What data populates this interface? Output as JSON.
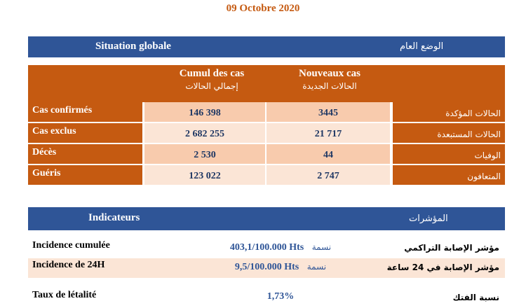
{
  "date": "09 Octobre 2020",
  "global": {
    "title_fr": "Situation globale",
    "title_ar": "الوضع العام",
    "col1_fr": "Cumul des cas",
    "col1_ar": "إجمالي الحالات",
    "col2_fr": "Nouveaux cas",
    "col2_ar": "الحالات الجديدة",
    "rows": [
      {
        "label_fr": "Cas confirmés",
        "cumul": "146 398",
        "nouveaux": "3445",
        "label_ar": "الحالات المؤكدة"
      },
      {
        "label_fr": "Cas exclus",
        "cumul": "2 682 255",
        "nouveaux": "21 717",
        "label_ar": "الحالات المستبعدة"
      },
      {
        "label_fr": "Décès",
        "cumul": "2 530",
        "nouveaux": "44",
        "label_ar": "الوفيات"
      },
      {
        "label_fr": "Guéris",
        "cumul": "123 022",
        "nouveaux": "2 747",
        "label_ar": "المتعافون"
      }
    ]
  },
  "indicators": {
    "title_fr": "Indicateurs",
    "title_ar": "المؤشرات",
    "rows": [
      {
        "label_fr": "Incidence cumulée",
        "value": "403,1/100.000 Hts",
        "value_ar": "نسمة",
        "label_ar": "مؤشر الإصابة التراكمي"
      },
      {
        "label_fr": "Incidence de 24H",
        "value": "9,5/100.000 Hts",
        "value_ar": "نسمة",
        "label_ar": "مؤشر الإصابة في 24 ساعة"
      },
      {
        "label_fr": "Taux de létalité",
        "value": "1,73%",
        "value_ar": "",
        "label_ar": "نسبة الفتك"
      }
    ]
  },
  "colors": {
    "orange": "#c55a11",
    "blue": "#2f5597",
    "light_orange": "#f8cbad",
    "pale_orange": "#fbe5d6"
  }
}
